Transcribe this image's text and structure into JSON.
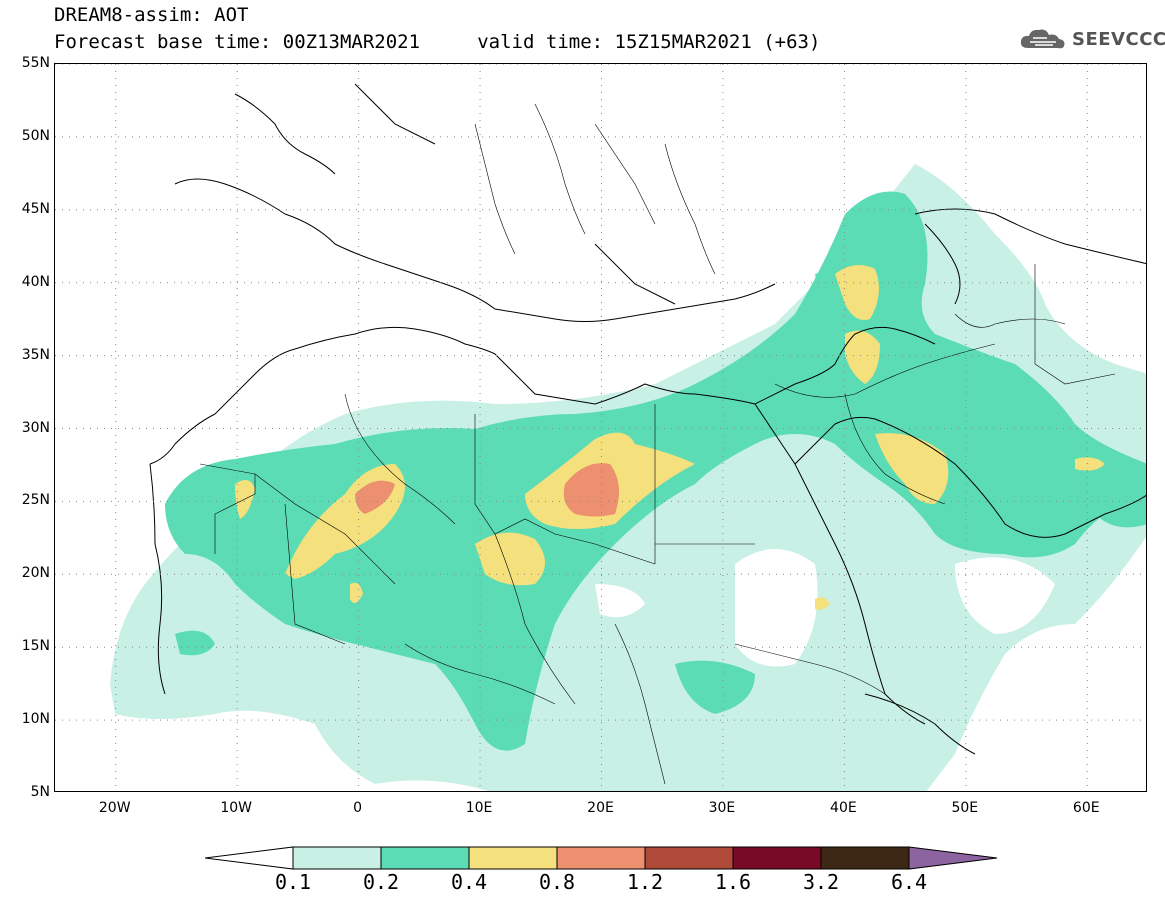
{
  "header": {
    "title_line1": "DREAM8-assim: AOT",
    "title_line2": "Forecast base time: 00Z13MAR2021     valid time: 15Z15MAR2021 (+63)"
  },
  "logo": {
    "text": "SEEVCCC",
    "icon": "cloud-icon"
  },
  "map": {
    "projection": "lat-lon",
    "lon_range": [
      -25,
      65
    ],
    "lat_range": [
      5,
      55
    ],
    "lat_labels": [
      "55N",
      "50N",
      "45N",
      "40N",
      "35N",
      "30N",
      "25N",
      "20N",
      "15N",
      "10N",
      "5N"
    ],
    "lon_labels": [
      "20W",
      "10W",
      "0",
      "10E",
      "20E",
      "30E",
      "40E",
      "50E",
      "60E"
    ],
    "lat_values": [
      55,
      50,
      45,
      40,
      35,
      30,
      25,
      20,
      15,
      10,
      5
    ],
    "lon_values": [
      -20,
      -10,
      0,
      10,
      20,
      30,
      40,
      50,
      60
    ]
  },
  "colorbar": {
    "levels": [
      "0.1",
      "0.2",
      "0.4",
      "0.8",
      "1.2",
      "1.6",
      "3.2",
      "6.4"
    ],
    "colors": [
      "#ffffff",
      "#c8f0e4",
      "#5cdcb4",
      "#f4e07c",
      "#ec9070",
      "#b04a38",
      "#780a28",
      "#3c2814",
      "#8c64a0"
    ]
  }
}
